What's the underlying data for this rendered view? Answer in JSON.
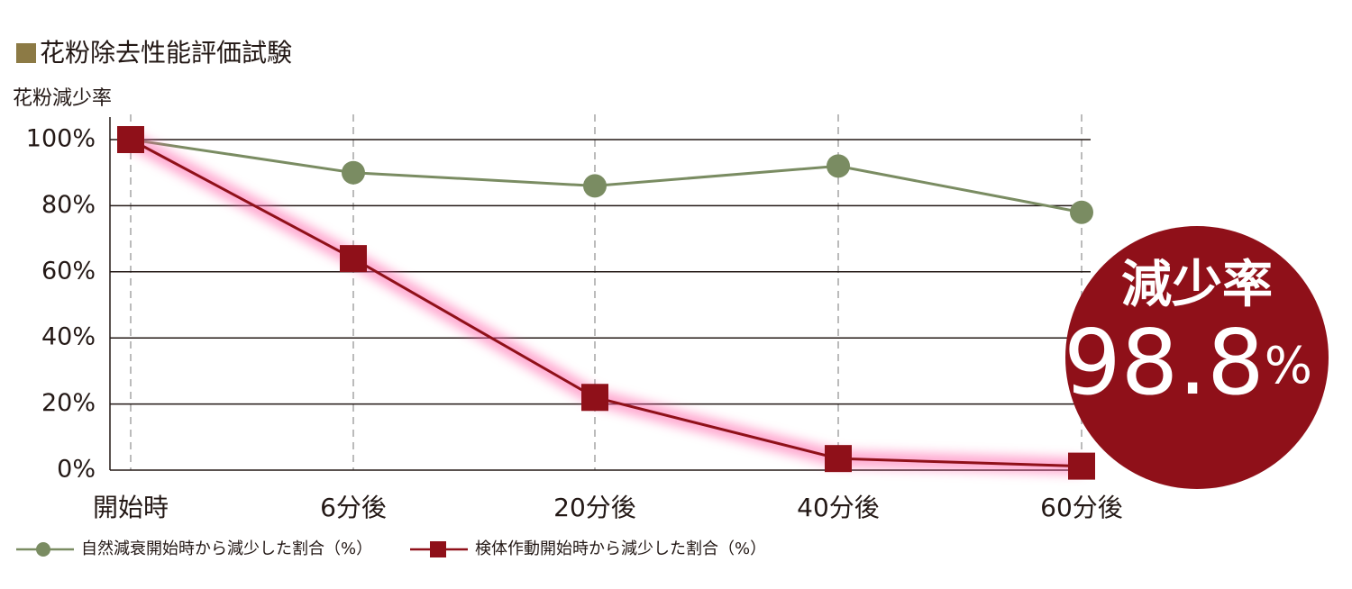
{
  "chart_data": {
    "type": "line",
    "title": "花粉除去性能評価試験",
    "y_label": "花粉減少率",
    "categories": [
      "開始時",
      "6分後",
      "20分後",
      "40分後",
      "60分後"
    ],
    "series": [
      {
        "name": "自然減衰開始時から減少した割合（%）",
        "color": "#7a8c62",
        "marker": "circle",
        "values": [
          100,
          90,
          86,
          92,
          78
        ]
      },
      {
        "name": "検体作動開始時から減少した割合（%）",
        "color": "#8f1019",
        "marker": "square",
        "glow": "#ff5fa8",
        "values": [
          100,
          64,
          22,
          3.5,
          1.2
        ]
      }
    ],
    "ylim": [
      0,
      100
    ],
    "yticks": [
      {
        "value": 0,
        "label": "0%"
      },
      {
        "value": 20,
        "label": "20%"
      },
      {
        "value": 40,
        "label": "40%"
      },
      {
        "value": 60,
        "label": "60%"
      },
      {
        "value": 80,
        "label": "80%"
      },
      {
        "value": 100,
        "label": "100%"
      }
    ],
    "grid": true,
    "annotation": {
      "text": "減少率",
      "value": 98.8,
      "suffix": "%",
      "color": "#8f1019"
    }
  }
}
